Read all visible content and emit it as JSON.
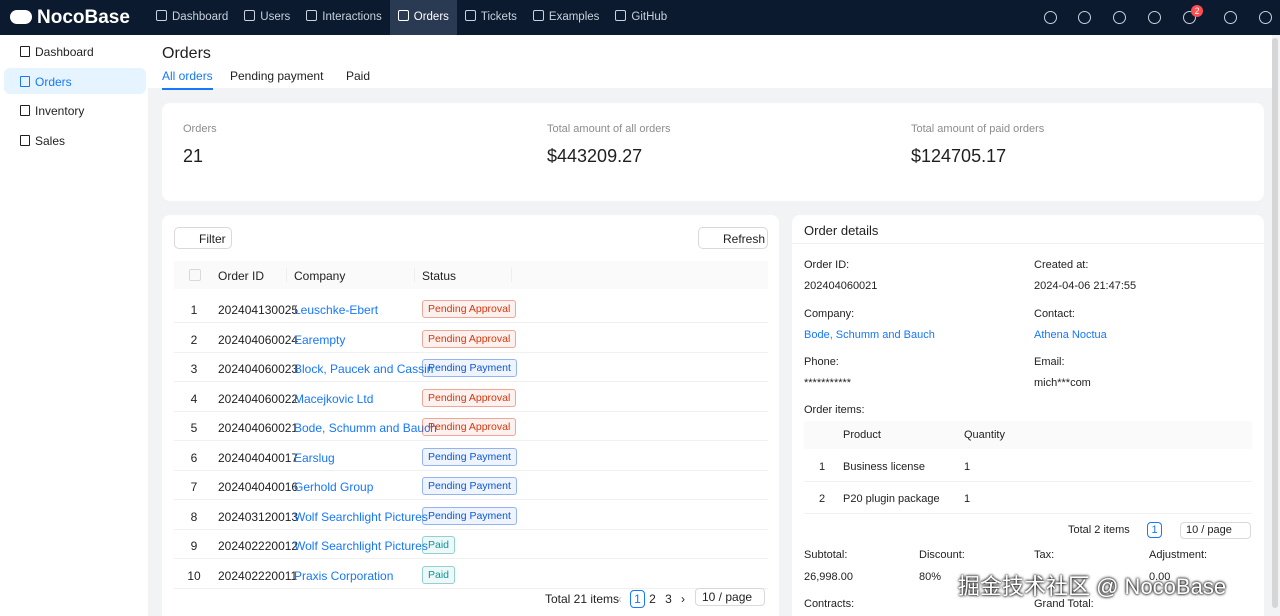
{
  "header": {
    "logo": "NocoBase",
    "nav": [
      "Dashboard",
      "Users",
      "Interactions",
      "Orders",
      "Tickets",
      "Examples",
      "GitHub"
    ],
    "active_nav": "Orders",
    "badge": "2"
  },
  "sidebar": {
    "items": [
      "Dashboard",
      "Orders",
      "Inventory",
      "Sales"
    ],
    "active": "Orders"
  },
  "page": {
    "title": "Orders",
    "tabs": [
      "All orders",
      "Pending payment",
      "Paid"
    ],
    "active_tab": "All orders"
  },
  "stats": [
    {
      "label": "Orders",
      "value": "21"
    },
    {
      "label": "Total amount of all orders",
      "value": "$443209.27"
    },
    {
      "label": "Total amount of paid orders",
      "value": "$124705.17"
    }
  ],
  "table": {
    "filter": "Filter",
    "refresh": "Refresh",
    "columns": [
      "Order ID",
      "Company",
      "Status"
    ],
    "rows": [
      {
        "index": "1",
        "order_id": "202404130025",
        "company": "Leuschke-Ebert",
        "status": "Pending Approval",
        "status_color": "#d4380d"
      },
      {
        "index": "2",
        "order_id": "202404060024",
        "company": "Earempty",
        "status": "Pending Approval",
        "status_color": "#d4380d"
      },
      {
        "index": "3",
        "order_id": "202404060023",
        "company": "Block, Paucek and Cassin",
        "status": "Pending Payment",
        "status_color": "#0958d9"
      },
      {
        "index": "4",
        "order_id": "202404060022",
        "company": "Macejkovic Ltd",
        "status": "Pending Approval",
        "status_color": "#d4380d"
      },
      {
        "index": "5",
        "order_id": "202404060021",
        "company": "Bode, Schumm and Bauch",
        "status": "Pending Approval",
        "status_color": "#d4380d"
      },
      {
        "index": "6",
        "order_id": "202404040017",
        "company": "Earslug",
        "status": "Pending Payment",
        "status_color": "#0958d9"
      },
      {
        "index": "7",
        "order_id": "202404040016",
        "company": "Gerhold Group",
        "status": "Pending Payment",
        "status_color": "#0958d9"
      },
      {
        "index": "8",
        "order_id": "202403120013",
        "company": "Wolf Searchlight Pictures",
        "status": "Pending Payment",
        "status_color": "#0958d9"
      },
      {
        "index": "9",
        "order_id": "202402220012",
        "company": "Wolf Searchlight Pictures",
        "status": "Paid",
        "status_color": "#08979c"
      },
      {
        "index": "10",
        "order_id": "202402220011",
        "company": "Praxis Corporation",
        "status": "Paid",
        "status_color": "#08979c"
      }
    ],
    "pagination": {
      "total": "Total 21 items",
      "pages": [
        "1",
        "2",
        "3"
      ],
      "current": "1",
      "page_size": "10 / page"
    }
  },
  "details": {
    "title": "Order details",
    "fields": [
      {
        "label": "Order ID:",
        "value": "202404060021"
      },
      {
        "label": "Created at:",
        "value": "2024-04-06 21:47:55"
      },
      {
        "label": "Company:",
        "value": "Bode, Schumm and Bauch",
        "link": true
      },
      {
        "label": "Contact:",
        "value": "Athena Noctua",
        "link": true
      },
      {
        "label": "Phone:",
        "value": "***********"
      },
      {
        "label": "Email:",
        "value": "mich***com"
      }
    ],
    "items_label": "Order items:",
    "item_columns": [
      "Product",
      "Quantity"
    ],
    "items": [
      {
        "index": "1",
        "product": "Business license",
        "quantity": "1"
      },
      {
        "index": "2",
        "product": "P20 plugin package",
        "quantity": "1"
      }
    ],
    "items_pagination": {
      "total": "Total 2 items",
      "current": "1",
      "page_size": "10 / page"
    },
    "summary": [
      {
        "label": "Subtotal:",
        "value": "26,998.00"
      },
      {
        "label": "Discount:",
        "value": "80%"
      },
      {
        "label": "Tax:"
      },
      {
        "label": "Adjustment:",
        "value": "0.00"
      }
    ],
    "footer_labels": [
      "Contracts:",
      "Grand Total:"
    ]
  },
  "watermark": "掘金技术社区 @ NocoBase"
}
